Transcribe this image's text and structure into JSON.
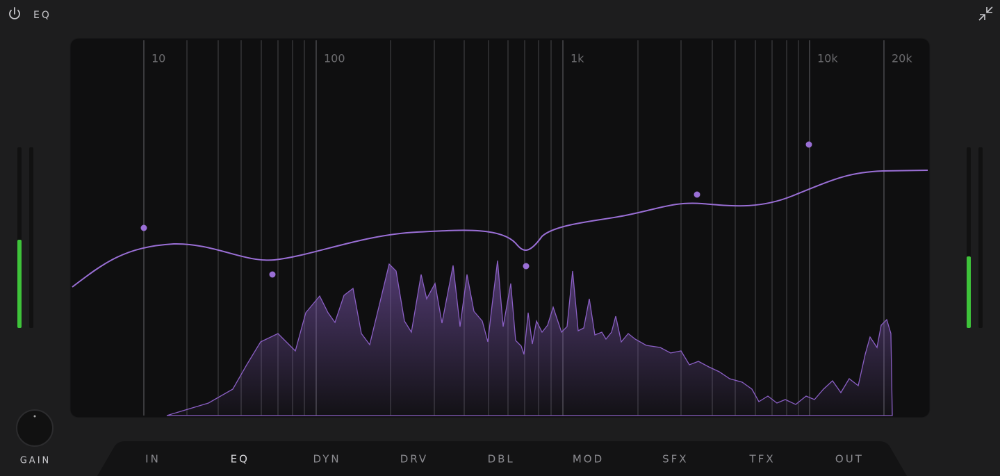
{
  "header": {
    "title": "EQ"
  },
  "frequency_labels": [
    "10",
    "100",
    "1k",
    "10k",
    "20k"
  ],
  "knob": {
    "label": "GAIN"
  },
  "tabs": {
    "items": [
      "IN",
      "EQ",
      "DYN",
      "DRV",
      "DBL",
      "MOD",
      "SFX",
      "TFX",
      "OUT"
    ],
    "active": "EQ"
  }
}
